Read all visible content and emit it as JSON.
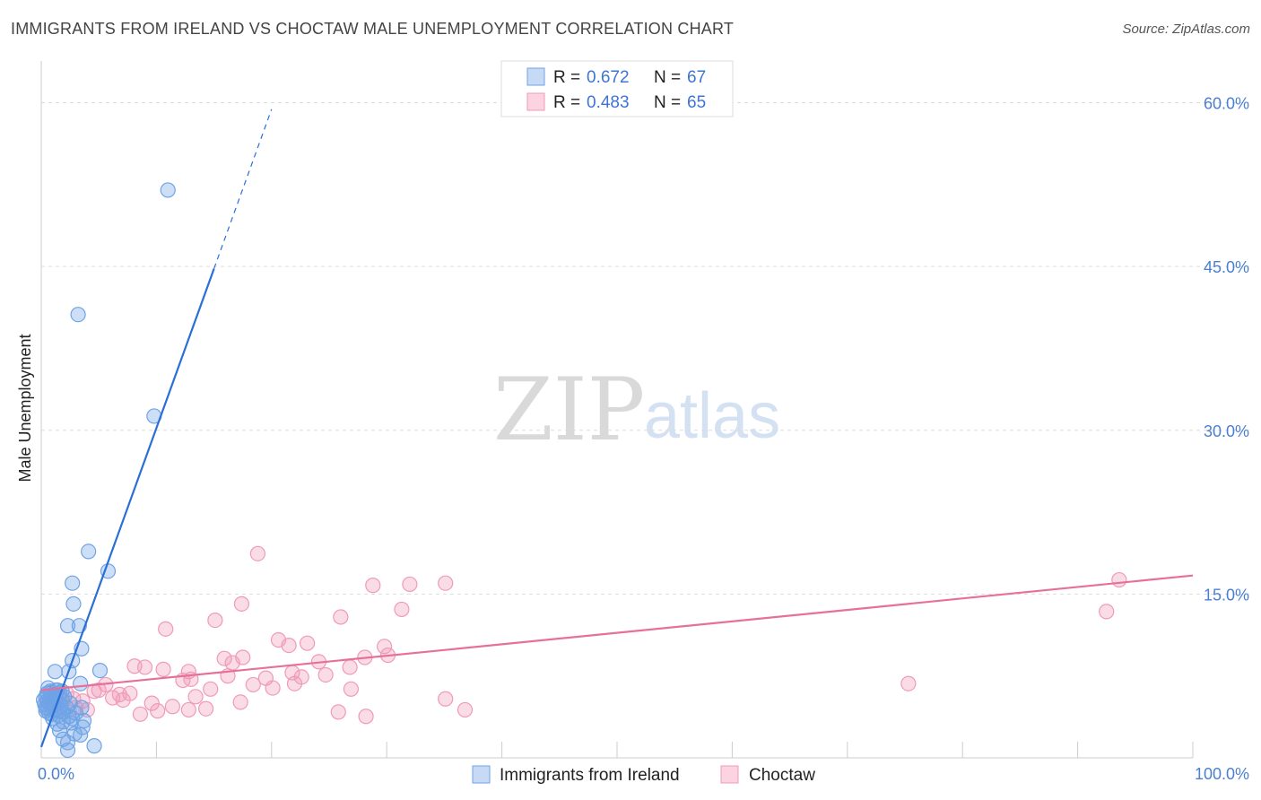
{
  "header": {
    "title": "IMMIGRANTS FROM IRELAND VS CHOCTAW MALE UNEMPLOYMENT CORRELATION CHART",
    "source": "Source: ZipAtlas.com"
  },
  "watermark": {
    "zip": "ZIP",
    "atlas": "atlas"
  },
  "colors": {
    "blue": "#6fa3e6",
    "blue_line": "#2a6fd6",
    "pink": "#f09ab8",
    "pink_line": "#e6709a",
    "tick": "#4a7fd4",
    "grid": "#dddddd"
  },
  "legend": {
    "series": [
      {
        "r_label": "R =",
        "r_value": "0.672",
        "n_label": "N =",
        "n_value": "67"
      },
      {
        "r_label": "R =",
        "r_value": "0.483",
        "n_label": "N =",
        "n_value": "65"
      }
    ]
  },
  "bottom_legend": [
    "Immigrants from Ireland",
    "Choctaw"
  ],
  "chart_data": {
    "type": "scatter",
    "title": "IMMIGRANTS FROM IRELAND VS CHOCTAW MALE UNEMPLOYMENT CORRELATION CHART",
    "xlabel": "",
    "ylabel": "Male Unemployment",
    "xlim": [
      0,
      100
    ],
    "ylim": [
      0,
      63
    ],
    "x_tick_labels": [
      "0.0%",
      "100.0%"
    ],
    "y_ticks": [
      15,
      30,
      45,
      60
    ],
    "y_tick_labels": [
      "15.0%",
      "30.0%",
      "45.0%",
      "60.0%"
    ],
    "grid": true,
    "legend_position": "top-center",
    "series": [
      {
        "name": "Immigrants from Ireland",
        "r": 0.672,
        "n": 67,
        "trend": {
          "x0": 0,
          "y0": 1.0,
          "x1": 15,
          "y1": 44.8,
          "dashed_to_x": 20
        },
        "points": [
          [
            11,
            52
          ],
          [
            3.2,
            40.6
          ],
          [
            9.8,
            31.3
          ],
          [
            4.1,
            18.9
          ],
          [
            5.8,
            17.1
          ],
          [
            2.7,
            16.0
          ],
          [
            2.8,
            14.1
          ],
          [
            2.3,
            12.1
          ],
          [
            3.3,
            12.1
          ],
          [
            3.5,
            10.0
          ],
          [
            2.7,
            8.9
          ],
          [
            5.1,
            8.0
          ],
          [
            2.4,
            7.9
          ],
          [
            1.2,
            7.9
          ],
          [
            3.4,
            6.8
          ],
          [
            0.6,
            6.4
          ],
          [
            1.4,
            6.2
          ],
          [
            0.9,
            6.0
          ],
          [
            1.6,
            5.9
          ],
          [
            1.1,
            5.8
          ],
          [
            0.4,
            5.6
          ],
          [
            0.8,
            5.5
          ],
          [
            1.3,
            5.4
          ],
          [
            1.8,
            5.3
          ],
          [
            0.5,
            5.2
          ],
          [
            1.0,
            5.1
          ],
          [
            1.5,
            5.0
          ],
          [
            0.3,
            4.9
          ],
          [
            0.9,
            4.8
          ],
          [
            1.7,
            4.7
          ],
          [
            2.2,
            4.6
          ],
          [
            0.6,
            4.5
          ],
          [
            1.2,
            4.4
          ],
          [
            0.4,
            4.3
          ],
          [
            1.9,
            4.2
          ],
          [
            3.5,
            4.6
          ],
          [
            0.7,
            4.1
          ],
          [
            1.5,
            3.9
          ],
          [
            2.4,
            3.8
          ],
          [
            1.0,
            3.6
          ],
          [
            3.7,
            3.4
          ],
          [
            2.6,
            3.2
          ],
          [
            1.4,
            3.1
          ],
          [
            3.6,
            2.8
          ],
          [
            1.6,
            2.5
          ],
          [
            2.9,
            2.2
          ],
          [
            3.4,
            2.1
          ],
          [
            1.9,
            1.7
          ],
          [
            2.3,
            1.4
          ],
          [
            4.6,
            1.1
          ],
          [
            2.3,
            0.7
          ],
          [
            1.1,
            4.9
          ],
          [
            0.5,
            5.9
          ],
          [
            1.8,
            6.1
          ],
          [
            0.9,
            4.0
          ],
          [
            2.0,
            5.6
          ],
          [
            0.2,
            5.3
          ],
          [
            1.3,
            6.2
          ],
          [
            0.7,
            5.0
          ],
          [
            1.6,
            4.3
          ],
          [
            2.7,
            3.6
          ],
          [
            0.4,
            4.6
          ],
          [
            1.2,
            5.7
          ],
          [
            0.8,
            6.1
          ],
          [
            1.9,
            3.3
          ],
          [
            2.5,
            5.0
          ],
          [
            3.0,
            4.1
          ]
        ]
      },
      {
        "name": "Choctaw",
        "r": 0.483,
        "n": 65,
        "trend": {
          "x0": 0,
          "y0": 6.2,
          "x1": 100,
          "y1": 16.7
        },
        "points": [
          [
            18.8,
            18.7
          ],
          [
            93.6,
            16.3
          ],
          [
            32.0,
            15.9
          ],
          [
            28.8,
            15.8
          ],
          [
            35.1,
            16.0
          ],
          [
            17.4,
            14.1
          ],
          [
            31.3,
            13.6
          ],
          [
            26.0,
            12.9
          ],
          [
            92.5,
            13.4
          ],
          [
            15.1,
            12.6
          ],
          [
            10.8,
            11.8
          ],
          [
            20.6,
            10.8
          ],
          [
            23.1,
            10.5
          ],
          [
            21.5,
            10.3
          ],
          [
            29.8,
            10.2
          ],
          [
            15.9,
            9.1
          ],
          [
            17.5,
            9.2
          ],
          [
            28.1,
            9.2
          ],
          [
            24.1,
            8.8
          ],
          [
            16.6,
            8.7
          ],
          [
            26.8,
            8.3
          ],
          [
            8.1,
            8.4
          ],
          [
            9.0,
            8.3
          ],
          [
            10.6,
            8.1
          ],
          [
            12.8,
            7.9
          ],
          [
            21.8,
            7.8
          ],
          [
            22.6,
            7.4
          ],
          [
            19.5,
            7.3
          ],
          [
            16.2,
            7.5
          ],
          [
            13.0,
            7.2
          ],
          [
            12.3,
            7.1
          ],
          [
            75.3,
            6.8
          ],
          [
            5.6,
            6.7
          ],
          [
            4.6,
            6.1
          ],
          [
            7.7,
            5.9
          ],
          [
            14.7,
            6.3
          ],
          [
            20.1,
            6.4
          ],
          [
            26.9,
            6.3
          ],
          [
            2.8,
            5.4
          ],
          [
            6.2,
            5.5
          ],
          [
            7.1,
            5.3
          ],
          [
            13.4,
            5.6
          ],
          [
            17.3,
            5.1
          ],
          [
            9.6,
            5.0
          ],
          [
            11.4,
            4.7
          ],
          [
            12.8,
            4.4
          ],
          [
            10.1,
            4.3
          ],
          [
            14.3,
            4.5
          ],
          [
            35.1,
            5.4
          ],
          [
            3.6,
            5.2
          ],
          [
            4.0,
            4.4
          ],
          [
            25.8,
            4.2
          ],
          [
            28.2,
            3.8
          ],
          [
            8.6,
            4.0
          ],
          [
            36.8,
            4.4
          ],
          [
            1.5,
            5.7
          ],
          [
            2.2,
            5.9
          ],
          [
            1.0,
            5.0
          ],
          [
            3.0,
            4.6
          ],
          [
            5.0,
            6.2
          ],
          [
            6.8,
            5.8
          ],
          [
            18.4,
            6.7
          ],
          [
            24.7,
            7.6
          ],
          [
            30.1,
            9.4
          ],
          [
            22.0,
            6.8
          ]
        ]
      }
    ]
  }
}
